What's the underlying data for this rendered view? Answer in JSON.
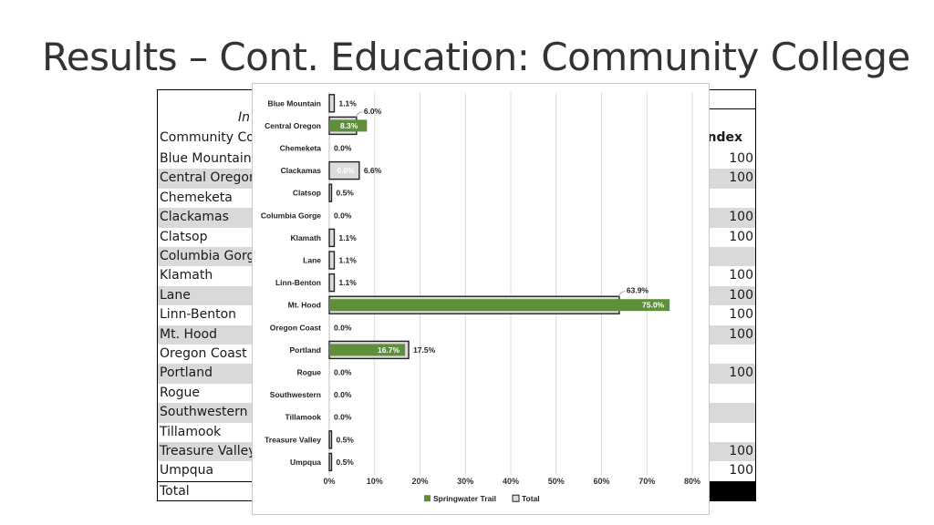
{
  "title": "Results – Cont. Education: Community College",
  "background_table": {
    "header_italic": "In",
    "header_col1": "Community Col",
    "header_index": "Index",
    "rows": [
      {
        "name": "Blue Mountain",
        "index": "100",
        "shade": false
      },
      {
        "name": "Central Oregon",
        "index": "100",
        "shade": true
      },
      {
        "name": "Chemeketa",
        "index": "",
        "shade": false
      },
      {
        "name": "Clackamas",
        "index": "100",
        "shade": true
      },
      {
        "name": "Clatsop",
        "index": "100",
        "shade": false
      },
      {
        "name": "Columbia Gorge",
        "index": "",
        "shade": true
      },
      {
        "name": "Klamath",
        "index": "100",
        "shade": false
      },
      {
        "name": "Lane",
        "index": "100",
        "shade": true
      },
      {
        "name": "Linn-Benton",
        "index": "100",
        "shade": false
      },
      {
        "name": "Mt. Hood",
        "index": "100",
        "shade": true
      },
      {
        "name": "Oregon Coast",
        "index": "",
        "shade": false
      },
      {
        "name": "Portland",
        "index": "100",
        "shade": true
      },
      {
        "name": "Rogue",
        "index": "",
        "shade": false
      },
      {
        "name": "Southwestern",
        "index": "",
        "shade": true
      },
      {
        "name": "Tillamook",
        "index": "",
        "shade": false
      },
      {
        "name": "Treasure Valley",
        "index": "100",
        "shade": true
      },
      {
        "name": "Umpqua",
        "index": "100",
        "shade": false
      }
    ],
    "total_label": "Total"
  },
  "chart_data": {
    "type": "bar",
    "orientation": "horizontal",
    "categories": [
      "Blue Mountain",
      "Central Oregon",
      "Chemeketa",
      "Clackamas",
      "Clatsop",
      "Columbia Gorge",
      "Klamath",
      "Lane",
      "Linn-Benton",
      "Mt. Hood",
      "Oregon Coast",
      "Portland",
      "Rogue",
      "Southwestern",
      "Tillamook",
      "Treasure Valley",
      "Umpqua"
    ],
    "series": [
      {
        "name": "Springwater Trail",
        "color": "#5e8f3a",
        "values": [
          0,
          8.3,
          0,
          0.0,
          0,
          0,
          0,
          0,
          0,
          75.0,
          0,
          16.7,
          0,
          0,
          0,
          0,
          0
        ],
        "labels": [
          "",
          "8.3%",
          "",
          "0.0%",
          "",
          "",
          "",
          "",
          "",
          "75.0%",
          "",
          "16.7%",
          "",
          "",
          "",
          "",
          ""
        ]
      },
      {
        "name": "Total",
        "color": "#dcdcdc",
        "values": [
          1.1,
          6.0,
          0.0,
          6.6,
          0.5,
          0.0,
          1.1,
          1.1,
          1.1,
          63.9,
          0.0,
          17.5,
          0.0,
          0.0,
          0.0,
          0.5,
          0.5
        ],
        "labels": [
          "1.1%",
          "6.0%",
          "0.0%",
          "6.6%",
          "0.5%",
          "0.0%",
          "1.1%",
          "1.1%",
          "1.1%",
          "63.9%",
          "0.0%",
          "17.5%",
          "0.0%",
          "0.0%",
          "0.0%",
          "0.5%",
          "0.5%"
        ]
      }
    ],
    "xlim": [
      0,
      80
    ],
    "xticks": [
      0,
      10,
      20,
      30,
      40,
      50,
      60,
      70,
      80
    ],
    "xtick_labels": [
      "0%",
      "10%",
      "20%",
      "30%",
      "40%",
      "50%",
      "60%",
      "70%",
      "80%"
    ],
    "legend": [
      "Springwater Trail",
      "Total"
    ],
    "legend_position": "bottom",
    "grid": true
  }
}
